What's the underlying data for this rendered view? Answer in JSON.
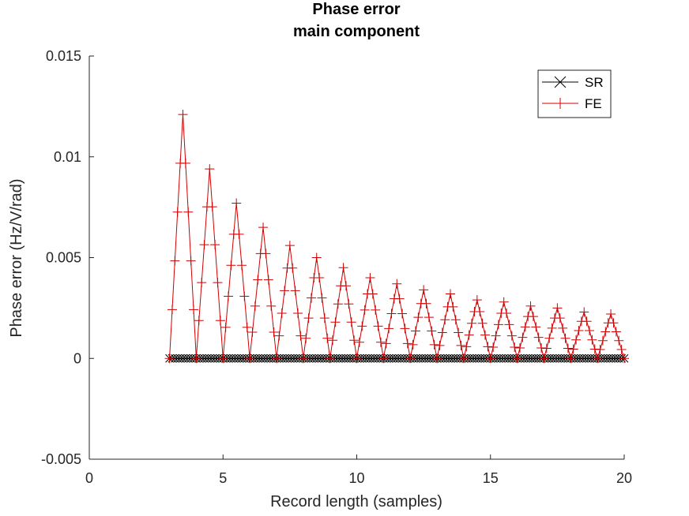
{
  "chart_data": {
    "type": "line",
    "title": "Phase error",
    "subtitle": "main component",
    "xlabel": "Record length (samples)",
    "ylabel": "Phase error (Hz/V/rad)",
    "xlim": [
      0,
      20
    ],
    "ylim": [
      -0.005,
      0.015
    ],
    "x_ticks": [
      0,
      5,
      10,
      15,
      20
    ],
    "x_tick_labels": [
      "0",
      "5",
      "10",
      "15",
      "20"
    ],
    "y_ticks": [
      -0.005,
      0,
      0.005,
      0.01,
      0.015
    ],
    "y_tick_labels": [
      "-0.005",
      "0",
      "0.005",
      "0.01",
      "0.015"
    ],
    "grid": false,
    "legend_position": "top-right",
    "series": [
      {
        "name": "SR",
        "color": "#000000",
        "marker": "x",
        "x_start": 3,
        "x_end": 20,
        "x_step": 0.1,
        "value": 0
      },
      {
        "name": "FE",
        "color": "#d00000",
        "marker": "+",
        "x_start": 3,
        "x_end": 20,
        "x_step": 0.1,
        "peaks": [
          {
            "x": 3.5,
            "y": 0.0121
          },
          {
            "x": 4.5,
            "y": 0.0094
          },
          {
            "x": 5.5,
            "y": 0.0077
          },
          {
            "x": 6.5,
            "y": 0.0065
          },
          {
            "x": 7.5,
            "y": 0.0056
          },
          {
            "x": 8.5,
            "y": 0.005
          },
          {
            "x": 9.5,
            "y": 0.0045
          },
          {
            "x": 10.5,
            "y": 0.004
          },
          {
            "x": 11.5,
            "y": 0.0037
          },
          {
            "x": 12.5,
            "y": 0.0034
          },
          {
            "x": 13.5,
            "y": 0.0032
          },
          {
            "x": 14.5,
            "y": 0.0029
          },
          {
            "x": 15.5,
            "y": 0.0028
          },
          {
            "x": 16.5,
            "y": 0.0026
          },
          {
            "x": 17.5,
            "y": 0.0025
          },
          {
            "x": 18.5,
            "y": 0.0023
          },
          {
            "x": 19.5,
            "y": 0.0022
          }
        ],
        "zeros": [
          3,
          4,
          5,
          6,
          7,
          8,
          9,
          10,
          11,
          12,
          13,
          14,
          15,
          16,
          17,
          18,
          19,
          20
        ]
      }
    ]
  }
}
